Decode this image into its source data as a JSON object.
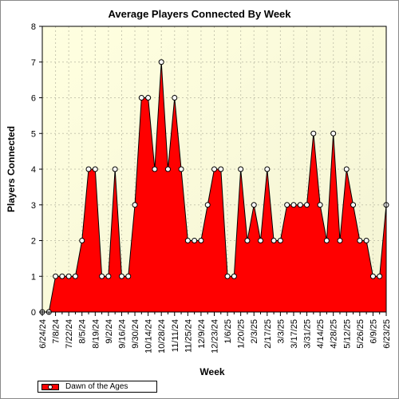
{
  "chart_data": {
    "type": "area",
    "title": "Average Players Connected By Week",
    "xlabel": "Week",
    "ylabel": "Players Connected",
    "ylim": [
      0,
      8
    ],
    "yticks": [
      0,
      1,
      2,
      3,
      4,
      5,
      6,
      7,
      8
    ],
    "grid": true,
    "legend_position": "bottom-left",
    "x_tick_labels": [
      "6/24/24",
      "7/8/24",
      "7/22/24",
      "8/5/24",
      "8/19/24",
      "9/2/24",
      "9/16/24",
      "9/30/24",
      "10/14/24",
      "10/28/24",
      "11/11/24",
      "11/25/24",
      "12/9/24",
      "12/23/24",
      "1/6/25",
      "1/20/25",
      "2/3/25",
      "2/17/25",
      "3/3/25",
      "3/17/25",
      "3/31/25",
      "4/14/25",
      "4/28/25",
      "5/12/25",
      "5/26/25",
      "6/9/25",
      "6/23/25"
    ],
    "categories": [
      "6/24/24",
      "7/1/24",
      "7/8/24",
      "7/15/24",
      "7/22/24",
      "7/29/24",
      "8/5/24",
      "8/12/24",
      "8/19/24",
      "8/26/24",
      "9/2/24",
      "9/9/24",
      "9/16/24",
      "9/23/24",
      "9/30/24",
      "10/7/24",
      "10/14/24",
      "10/21/24",
      "10/28/24",
      "11/4/24",
      "11/11/24",
      "11/18/24",
      "11/25/24",
      "12/2/24",
      "12/9/24",
      "12/16/24",
      "12/23/24",
      "12/30/24",
      "1/6/25",
      "1/13/25",
      "1/20/25",
      "1/27/25",
      "2/3/25",
      "2/10/25",
      "2/17/25",
      "2/24/25",
      "3/3/25",
      "3/10/25",
      "3/17/25",
      "3/24/25",
      "3/31/25",
      "4/7/25",
      "4/14/25",
      "4/21/25",
      "4/28/25",
      "5/5/25",
      "5/12/25",
      "5/19/25",
      "5/26/25",
      "6/2/25",
      "6/9/25",
      "6/16/25",
      "6/23/25"
    ],
    "series": [
      {
        "name": "Dawn of the Ages",
        "color": "#ff0000",
        "values": [
          0,
          0,
          1,
          1,
          1,
          1,
          2,
          4,
          4,
          1,
          1,
          4,
          1,
          1,
          3,
          6,
          6,
          4,
          7,
          4,
          6,
          4,
          2,
          2,
          2,
          3,
          4,
          4,
          1,
          1,
          4,
          2,
          3,
          2,
          4,
          2,
          2,
          3,
          3,
          3,
          3,
          5,
          3,
          2,
          5,
          2,
          4,
          3,
          2,
          2,
          1,
          1,
          3
        ]
      }
    ]
  }
}
